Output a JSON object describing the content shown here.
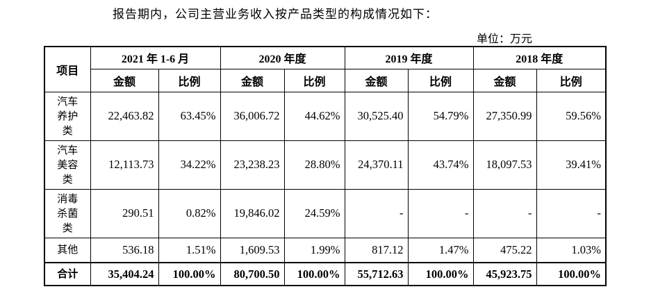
{
  "intro": "报告期内，公司主营业务收入按产品类型的构成情况如下：",
  "unit": "单位：万元",
  "table": {
    "item_header": "项目",
    "periods": [
      "2021 年 1-6 月",
      "2020 年度",
      "2019 年度",
      "2018 年度"
    ],
    "amount_label": "金额",
    "ratio_label": "比例",
    "rows": [
      {
        "label": [
          "汽车",
          "养护",
          "类"
        ],
        "cells": [
          "22,463.82",
          "63.45%",
          "36,006.72",
          "44.62%",
          "30,525.40",
          "54.79%",
          "27,350.99",
          "59.56%"
        ]
      },
      {
        "label": [
          "汽车",
          "美容",
          "类"
        ],
        "cells": [
          "12,113.73",
          "34.22%",
          "23,238.23",
          "28.80%",
          "24,370.11",
          "43.74%",
          "18,097.53",
          "39.41%"
        ]
      },
      {
        "label": [
          "消毒",
          "杀菌",
          "类"
        ],
        "cells": [
          "290.51",
          "0.82%",
          "19,846.02",
          "24.59%",
          "-",
          "-",
          "-",
          "-"
        ]
      },
      {
        "label": [
          "其他"
        ],
        "cells": [
          "536.18",
          "1.51%",
          "1,609.53",
          "1.99%",
          "817.12",
          "1.47%",
          "475.22",
          "1.03%"
        ]
      }
    ],
    "total": {
      "label": "合计",
      "cells": [
        "35,404.24",
        "100.00%",
        "80,700.50",
        "100.00%",
        "55,712.63",
        "100.00%",
        "45,923.75",
        "100.00%"
      ]
    }
  }
}
